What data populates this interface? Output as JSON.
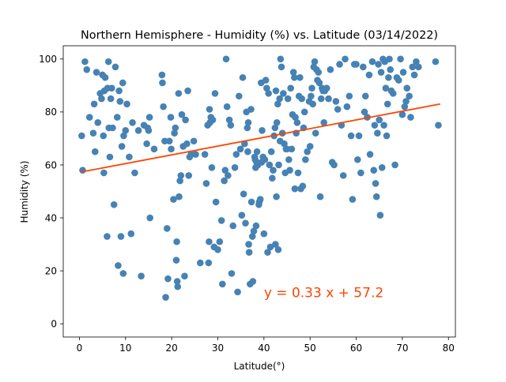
{
  "chart_data": {
    "type": "scatter",
    "title": "Northern Hemisphere - Humidity (%) vs. Latitude (03/14/2022)",
    "xlabel": "Latitude(°)",
    "ylabel": "Humidity (%)",
    "xlim": [
      -3.5,
      81.5
    ],
    "ylim": [
      -5,
      105
    ],
    "xticks": [
      0,
      10,
      20,
      30,
      40,
      50,
      60,
      70,
      80
    ],
    "yticks": [
      0,
      20,
      40,
      60,
      80,
      100
    ],
    "grid": false,
    "marker_color": "#4682b4",
    "regression": {
      "slope": 0.33,
      "intercept": 57.2,
      "x_range": [
        0.4,
        78.2
      ],
      "color": "#ff4500",
      "equation_label": "y = 0.33 x + 57.2",
      "label_anchor": [
        40.0,
        10.0
      ]
    },
    "points": [
      [
        0.5,
        71
      ],
      [
        0.7,
        58
      ],
      [
        1.2,
        99
      ],
      [
        1.6,
        96
      ],
      [
        2.2,
        78
      ],
      [
        3.0,
        72
      ],
      [
        3.2,
        83
      ],
      [
        3.4,
        65
      ],
      [
        3.7,
        95
      ],
      [
        4.0,
        76
      ],
      [
        4.5,
        87
      ],
      [
        4.8,
        85
      ],
      [
        5.0,
        94
      ],
      [
        5.2,
        71
      ],
      [
        5.3,
        57
      ],
      [
        5.4,
        88
      ],
      [
        5.6,
        93
      ],
      [
        6.0,
        33
      ],
      [
        6.1,
        89
      ],
      [
        6.3,
        99
      ],
      [
        6.4,
        74
      ],
      [
        6.6,
        63
      ],
      [
        6.8,
        85
      ],
      [
        7.0,
        89
      ],
      [
        7.2,
        74
      ],
      [
        7.5,
        45
      ],
      [
        7.8,
        97
      ],
      [
        8.2,
        78
      ],
      [
        8.4,
        22
      ],
      [
        8.6,
        88
      ],
      [
        8.8,
        84
      ],
      [
        9.0,
        33
      ],
      [
        9.2,
        67
      ],
      [
        9.4,
        91
      ],
      [
        9.5,
        19
      ],
      [
        9.6,
        71
      ],
      [
        10.0,
        73
      ],
      [
        10.3,
        83
      ],
      [
        10.8,
        63
      ],
      [
        11.2,
        34
      ],
      [
        11.5,
        76
      ],
      [
        12.0,
        57
      ],
      [
        12.8,
        73
      ],
      [
        13.4,
        18
      ],
      [
        14.0,
        75
      ],
      [
        14.6,
        68
      ],
      [
        14.8,
        74
      ],
      [
        15.0,
        73
      ],
      [
        15.2,
        78
      ],
      [
        15.3,
        40
      ],
      [
        16.2,
        66
      ],
      [
        17.9,
        94
      ],
      [
        18.0,
        91
      ],
      [
        18.2,
        82
      ],
      [
        18.5,
        69
      ],
      [
        18.7,
        10
      ],
      [
        19.0,
        36
      ],
      [
        19.2,
        17
      ],
      [
        19.5,
        69
      ],
      [
        19.8,
        78
      ],
      [
        19.9,
        66
      ],
      [
        20.4,
        47
      ],
      [
        20.6,
        72
      ],
      [
        20.8,
        74
      ],
      [
        21.0,
        24
      ],
      [
        21.1,
        31
      ],
      [
        21.2,
        16
      ],
      [
        21.3,
        14
      ],
      [
        21.5,
        87
      ],
      [
        21.6,
        48
      ],
      [
        21.8,
        54
      ],
      [
        22.0,
        56
      ],
      [
        22.2,
        79
      ],
      [
        22.5,
        67
      ],
      [
        22.8,
        18
      ],
      [
        23.0,
        77
      ],
      [
        23.3,
        68
      ],
      [
        23.5,
        88
      ],
      [
        23.7,
        56
      ],
      [
        23.9,
        63
      ],
      [
        24.2,
        64
      ],
      [
        24.8,
        69
      ],
      [
        25.2,
        64
      ],
      [
        26.2,
        23
      ],
      [
        27.2,
        64
      ],
      [
        27.5,
        53
      ],
      [
        27.8,
        75
      ],
      [
        28.0,
        23
      ],
      [
        28.1,
        31
      ],
      [
        28.2,
        81
      ],
      [
        28.3,
        76
      ],
      [
        28.5,
        78
      ],
      [
        28.7,
        59
      ],
      [
        28.9,
        77
      ],
      [
        29.2,
        29
      ],
      [
        29.4,
        87
      ],
      [
        29.6,
        46
      ],
      [
        30.0,
        28
      ],
      [
        30.4,
        31
      ],
      [
        30.8,
        39
      ],
      [
        31.0,
        15
      ],
      [
        31.4,
        54
      ],
      [
        31.6,
        58
      ],
      [
        31.8,
        100
      ],
      [
        32.0,
        82
      ],
      [
        32.2,
        56
      ],
      [
        32.5,
        77
      ],
      [
        32.8,
        75
      ],
      [
        33.0,
        19
      ],
      [
        33.3,
        37
      ],
      [
        33.7,
        59
      ],
      [
        34.0,
        64
      ],
      [
        34.3,
        12
      ],
      [
        34.6,
        86
      ],
      [
        34.9,
        66
      ],
      [
        35.2,
        41
      ],
      [
        35.4,
        93
      ],
      [
        35.6,
        49
      ],
      [
        35.8,
        68
      ],
      [
        36.0,
        38
      ],
      [
        36.2,
        80
      ],
      [
        36.4,
        74
      ],
      [
        36.5,
        65
      ],
      [
        36.6,
        76
      ],
      [
        36.7,
        30
      ],
      [
        36.8,
        27
      ],
      [
        37.0,
        15
      ],
      [
        37.2,
        81
      ],
      [
        37.3,
        46
      ],
      [
        37.5,
        33
      ],
      [
        37.6,
        16
      ],
      [
        37.8,
        35
      ],
      [
        38.0,
        63
      ],
      [
        38.1,
        62
      ],
      [
        38.2,
        59
      ],
      [
        38.3,
        37
      ],
      [
        38.4,
        61
      ],
      [
        38.5,
        65
      ],
      [
        38.7,
        60
      ],
      [
        38.9,
        45
      ],
      [
        39.0,
        46
      ],
      [
        39.2,
        47
      ],
      [
        39.4,
        91
      ],
      [
        39.5,
        61
      ],
      [
        39.6,
        73
      ],
      [
        39.8,
        63
      ],
      [
        40.0,
        34
      ],
      [
        40.2,
        62
      ],
      [
        40.4,
        92
      ],
      [
        40.6,
        89
      ],
      [
        40.8,
        27
      ],
      [
        41.0,
        87
      ],
      [
        41.2,
        60
      ],
      [
        41.4,
        29
      ],
      [
        41.6,
        65
      ],
      [
        41.8,
        55
      ],
      [
        42.0,
        58
      ],
      [
        42.2,
        71
      ],
      [
        42.4,
        74
      ],
      [
        42.5,
        30
      ],
      [
        42.6,
        88
      ],
      [
        42.7,
        48
      ],
      [
        42.8,
        76
      ],
      [
        43.0,
        83
      ],
      [
        43.1,
        28
      ],
      [
        43.2,
        60
      ],
      [
        43.4,
        85
      ],
      [
        43.5,
        69
      ],
      [
        43.6,
        100
      ],
      [
        43.8,
        97
      ],
      [
        44.0,
        72
      ],
      [
        44.2,
        87
      ],
      [
        44.4,
        68
      ],
      [
        44.6,
        57
      ],
      [
        44.8,
        66
      ],
      [
        45.0,
        66
      ],
      [
        45.2,
        85
      ],
      [
        45.4,
        62
      ],
      [
        45.6,
        58
      ],
      [
        45.8,
        89
      ],
      [
        46.0,
        66
      ],
      [
        46.2,
        79
      ],
      [
        46.4,
        95
      ],
      [
        46.6,
        93
      ],
      [
        46.7,
        51
      ],
      [
        46.8,
        78
      ],
      [
        47.0,
        72
      ],
      [
        47.2,
        76
      ],
      [
        47.4,
        57
      ],
      [
        47.6,
        86
      ],
      [
        47.8,
        93
      ],
      [
        48.0,
        51
      ],
      [
        48.2,
        85
      ],
      [
        48.4,
        52
      ],
      [
        48.6,
        74
      ],
      [
        48.8,
        80
      ],
      [
        49.0,
        62
      ],
      [
        49.4,
        65
      ],
      [
        49.8,
        84
      ],
      [
        50.0,
        67
      ],
      [
        50.2,
        86
      ],
      [
        50.4,
        89
      ],
      [
        50.6,
        83
      ],
      [
        50.8,
        97
      ],
      [
        51.0,
        99
      ],
      [
        51.2,
        72
      ],
      [
        51.4,
        96
      ],
      [
        51.6,
        92
      ],
      [
        51.8,
        95
      ],
      [
        52.0,
        91
      ],
      [
        52.2,
        48
      ],
      [
        52.4,
        85
      ],
      [
        52.6,
        89
      ],
      [
        52.8,
        88
      ],
      [
        53.0,
        76
      ],
      [
        53.2,
        88
      ],
      [
        53.6,
        89
      ],
      [
        54.0,
        85
      ],
      [
        54.4,
        96
      ],
      [
        54.8,
        61
      ],
      [
        55.2,
        60
      ],
      [
        55.6,
        84
      ],
      [
        56.0,
        81
      ],
      [
        56.4,
        98
      ],
      [
        56.8,
        75
      ],
      [
        57.2,
        56
      ],
      [
        57.6,
        100
      ],
      [
        58.0,
        82
      ],
      [
        58.5,
        86
      ],
      [
        58.9,
        71
      ],
      [
        59.2,
        47
      ],
      [
        59.6,
        98
      ],
      [
        60.0,
        98
      ],
      [
        60.3,
        62
      ],
      [
        60.6,
        71
      ],
      [
        61.0,
        57
      ],
      [
        61.5,
        97
      ],
      [
        61.8,
        80
      ],
      [
        62.0,
        86
      ],
      [
        62.4,
        78
      ],
      [
        62.8,
        94
      ],
      [
        63.0,
        64
      ],
      [
        63.5,
        99
      ],
      [
        63.8,
        58
      ],
      [
        64.0,
        75
      ],
      [
        64.2,
        53
      ],
      [
        64.4,
        48
      ],
      [
        64.6,
        72
      ],
      [
        64.8,
        98
      ],
      [
        65.0,
        77
      ],
      [
        65.2,
        41
      ],
      [
        65.4,
        95
      ],
      [
        65.6,
        59
      ],
      [
        65.8,
        100
      ],
      [
        66.0,
        75
      ],
      [
        66.2,
        99
      ],
      [
        66.4,
        89
      ],
      [
        66.6,
        71
      ],
      [
        66.8,
        83
      ],
      [
        67.0,
        93
      ],
      [
        67.2,
        100
      ],
      [
        67.4,
        96
      ],
      [
        67.6,
        88
      ],
      [
        68.0,
        87
      ],
      [
        68.4,
        60
      ],
      [
        68.8,
        93
      ],
      [
        69.2,
        92
      ],
      [
        69.6,
        100
      ],
      [
        70.0,
        79
      ],
      [
        70.2,
        95
      ],
      [
        70.5,
        82
      ],
      [
        70.8,
        84
      ],
      [
        71.0,
        89
      ],
      [
        71.5,
        86
      ],
      [
        71.8,
        78
      ],
      [
        72.2,
        97
      ],
      [
        72.6,
        94
      ],
      [
        73.0,
        99
      ],
      [
        73.5,
        97
      ],
      [
        77.2,
        99
      ],
      [
        77.8,
        75
      ]
    ]
  }
}
